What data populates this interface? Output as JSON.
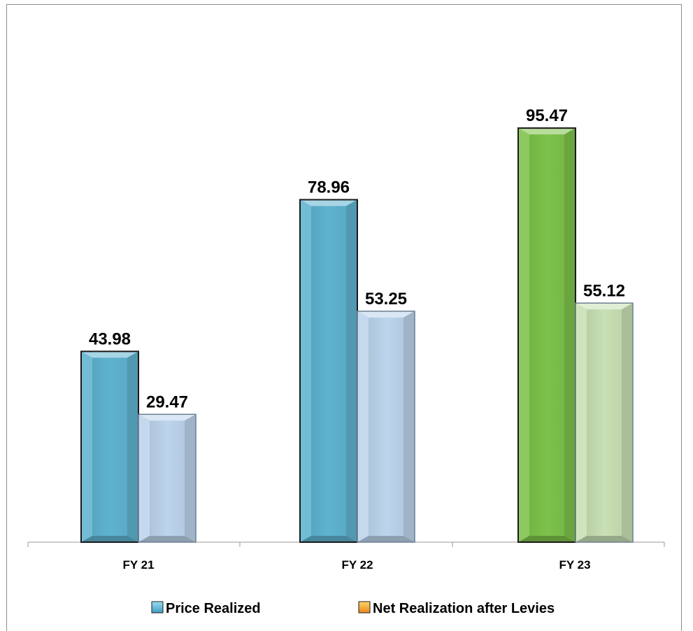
{
  "chart_data": {
    "type": "bar",
    "categories": [
      "FY 21",
      "FY 22",
      "FY 23"
    ],
    "series": [
      {
        "name": "Price Realized",
        "values": [
          43.98,
          78.96,
          95.47
        ]
      },
      {
        "name": "Net Realization after Levies",
        "values": [
          29.47,
          53.25,
          55.12
        ]
      }
    ],
    "ylim": [
      0,
      110
    ],
    "grid": false,
    "legend_position": "bottom",
    "colors": {
      "price_realized": "#5fb3cf",
      "price_realized_fy23": "#7dc24a",
      "net_realization": "#bcd4ec",
      "net_realization_fy23": "#c8e0b4",
      "legend_price": "#4aa8cc",
      "legend_net": "#f2a12e"
    }
  }
}
